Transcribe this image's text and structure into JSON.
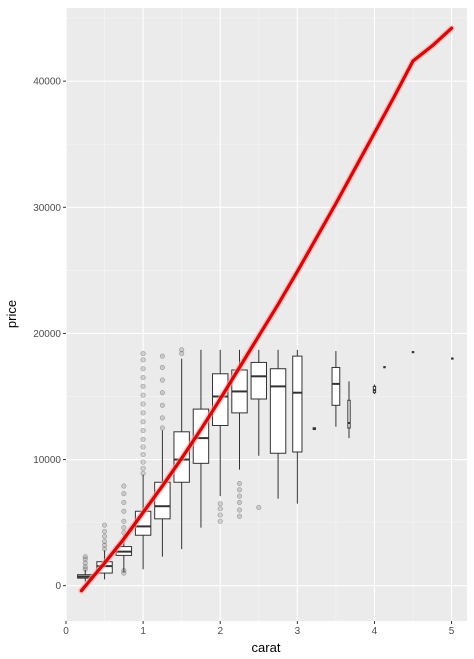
{
  "chart_data": {
    "type": "boxplot",
    "xlabel": "carat",
    "ylabel": "price",
    "xlim": [
      -0.0,
      5.2
    ],
    "ylim": [
      -2800,
      45800
    ],
    "x_ticks": [
      0,
      1,
      2,
      3,
      4,
      5
    ],
    "x_tick_labels": [
      "0",
      "1",
      "2",
      "3",
      "4",
      "5"
    ],
    "y_ticks": [
      0,
      10000,
      20000,
      30000,
      40000
    ],
    "y_tick_labels": [
      "0",
      "10000",
      "20000",
      "30000",
      "40000"
    ],
    "grid": true,
    "boxes": [
      {
        "x": 0.25,
        "width": 0.2,
        "q1": 600,
        "median": 720,
        "q3": 870,
        "lower": 330,
        "upper": 1250,
        "outliers": [
          1300,
          1500,
          1800,
          2100,
          2300
        ]
      },
      {
        "x": 0.5,
        "width": 0.2,
        "q1": 1000,
        "median": 1550,
        "q3": 1900,
        "lower": 500,
        "upper": 2800,
        "outliers": [
          2900,
          3200,
          3500,
          3900,
          4300,
          4800
        ]
      },
      {
        "x": 0.75,
        "width": 0.2,
        "q1": 2400,
        "median": 2700,
        "q3": 3100,
        "lower": 1100,
        "upper": 4000,
        "outliers": [
          1000,
          1200,
          4200,
          4600,
          5100,
          5900,
          6600,
          7300,
          7900
        ]
      },
      {
        "x": 1.0,
        "width": 0.2,
        "q1": 4000,
        "median": 4700,
        "q3": 5900,
        "lower": 1300,
        "upper": 8800,
        "outliers": [
          8900,
          9300,
          9800,
          10400,
          11000,
          11600,
          12300,
          13000,
          13700,
          14400,
          15100,
          15800,
          16500,
          17200,
          17900,
          18400
        ]
      },
      {
        "x": 1.25,
        "width": 0.2,
        "q1": 5300,
        "median": 6300,
        "q3": 8200,
        "lower": 2300,
        "upper": 12300,
        "outliers": [
          12500,
          13300,
          14300,
          15300,
          16300,
          17300,
          18200
        ]
      },
      {
        "x": 1.5,
        "width": 0.2,
        "q1": 8200,
        "median": 10000,
        "q3": 12200,
        "lower": 2900,
        "upper": 18000,
        "outliers": [
          18400,
          18700
        ]
      },
      {
        "x": 1.75,
        "width": 0.2,
        "q1": 9700,
        "median": 11700,
        "q3": 14000,
        "lower": 4600,
        "upper": 18700,
        "outliers": []
      },
      {
        "x": 2.0,
        "width": 0.2,
        "q1": 12700,
        "median": 15000,
        "q3": 16800,
        "lower": 7100,
        "upper": 18700,
        "outliers": [
          5100,
          5600,
          6100,
          6500
        ]
      },
      {
        "x": 2.25,
        "width": 0.2,
        "q1": 13700,
        "median": 15400,
        "q3": 17100,
        "lower": 9200,
        "upper": 18700,
        "outliers": [
          5500,
          6000,
          6600,
          7100,
          7600,
          8100
        ]
      },
      {
        "x": 2.5,
        "width": 0.2,
        "q1": 14800,
        "median": 16600,
        "q3": 17700,
        "lower": 10300,
        "upper": 18700,
        "outliers": [
          6200
        ]
      },
      {
        "x": 2.75,
        "width": 0.2,
        "q1": 10500,
        "median": 15800,
        "q3": 17200,
        "lower": 6900,
        "upper": 18700,
        "outliers": []
      },
      {
        "x": 3.0,
        "width": 0.12,
        "q1": 10600,
        "median": 15300,
        "q3": 18200,
        "lower": 6500,
        "upper": 18700,
        "outliers": []
      },
      {
        "x": 3.22,
        "width": 0.03,
        "q1": 12380,
        "median": 12450,
        "q3": 12520,
        "lower": 12380,
        "upper": 12520,
        "outliers": []
      },
      {
        "x": 3.5,
        "width": 0.1,
        "q1": 14300,
        "median": 16000,
        "q3": 17300,
        "lower": 12600,
        "upper": 18600,
        "outliers": []
      },
      {
        "x": 3.67,
        "width": 0.03,
        "q1": 12500,
        "median": 12900,
        "q3": 14700,
        "lower": 11700,
        "upper": 16200,
        "outliers": []
      },
      {
        "x": 4.0,
        "width": 0.03,
        "q1": 15300,
        "median": 15500,
        "q3": 15800,
        "lower": 15200,
        "upper": 15950,
        "outliers": []
      },
      {
        "x": 4.13,
        "width": 0.02,
        "q1": 17300,
        "median": 17330,
        "q3": 17360,
        "lower": 17300,
        "upper": 17360,
        "outliers": []
      },
      {
        "x": 4.5,
        "width": 0.02,
        "q1": 18510,
        "median": 18530,
        "q3": 18550,
        "lower": 18510,
        "upper": 18550,
        "outliers": []
      },
      {
        "x": 5.01,
        "width": 0.02,
        "q1": 18000,
        "median": 18020,
        "q3": 18040,
        "lower": 18000,
        "upper": 18040,
        "outliers": []
      }
    ],
    "fit_line": {
      "color": "#e60000",
      "band_color": "#f2a0a0",
      "x": [
        0.2,
        0.5,
        0.75,
        1.0,
        1.25,
        1.5,
        1.75,
        2.0,
        2.25,
        2.5,
        2.75,
        3.0,
        3.25,
        3.5,
        3.75,
        4.0,
        4.25,
        4.5,
        4.75,
        5.0
      ],
      "y": [
        -400,
        1800,
        3700,
        5800,
        7900,
        10100,
        12400,
        14800,
        17300,
        19800,
        22300,
        24900,
        27600,
        30300,
        33100,
        35900,
        38700,
        41600,
        42800,
        44200
      ]
    },
    "colors": {
      "panel": "#ebebeb",
      "grid_major": "#ffffff",
      "box_stroke": "#333333",
      "outlier": "#333333"
    }
  }
}
